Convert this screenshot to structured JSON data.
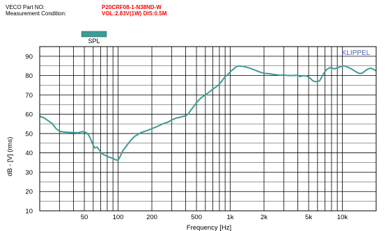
{
  "header": {
    "part_no_label": "VECO Part NO:",
    "part_no_value": "P20CRF08-1-N38ND-W",
    "measurement_label": "Measurement Condition:",
    "measurement_value": "VOL:2.83V(1W)  DIS:0.5M"
  },
  "legend": {
    "label": "SPL",
    "color": "#3b9b95"
  },
  "brand": "KLIPPEL",
  "colors": {
    "curve": "#3b9b95",
    "grid": "#000000"
  },
  "chart_data": {
    "type": "line",
    "xscale": "log",
    "xlim": [
      20,
      20000
    ],
    "ylim": [
      10,
      95
    ],
    "xlabel": "Frequency [Hz]",
    "ylabel": "dB - [V] (rms)",
    "xtick_labels": [
      {
        "value": 50,
        "label": "50"
      },
      {
        "value": 100,
        "label": "100"
      },
      {
        "value": 200,
        "label": "200"
      },
      {
        "value": 500,
        "label": "500"
      },
      {
        "value": 1000,
        "label": "1k"
      },
      {
        "value": 2000,
        "label": "2k"
      },
      {
        "value": 5000,
        "label": "5k"
      },
      {
        "value": 10000,
        "label": "10k"
      }
    ],
    "ytick_labels": [
      10,
      20,
      30,
      40,
      50,
      60,
      70,
      80,
      90
    ],
    "grid": true,
    "series": [
      {
        "name": "SPL",
        "points": [
          [
            20,
            59
          ],
          [
            22,
            58
          ],
          [
            24,
            56.5
          ],
          [
            26,
            55
          ],
          [
            28,
            52.5
          ],
          [
            30,
            51.2
          ],
          [
            33,
            50.8
          ],
          [
            36,
            50.6
          ],
          [
            40,
            50.5
          ],
          [
            44,
            50.4
          ],
          [
            48,
            51
          ],
          [
            52,
            50.5
          ],
          [
            55,
            49
          ],
          [
            57,
            47
          ],
          [
            60,
            44
          ],
          [
            62,
            42.5
          ],
          [
            65,
            43
          ],
          [
            68,
            41.5
          ],
          [
            71,
            39.8
          ],
          [
            75,
            39
          ],
          [
            80,
            38.2
          ],
          [
            85,
            37.6
          ],
          [
            90,
            37.2
          ],
          [
            95,
            36.4
          ],
          [
            100,
            36.2
          ],
          [
            105,
            38.5
          ],
          [
            110,
            41
          ],
          [
            120,
            44
          ],
          [
            130,
            46.5
          ],
          [
            140,
            48.5
          ],
          [
            150,
            49.5
          ],
          [
            160,
            50.5
          ],
          [
            180,
            51.5
          ],
          [
            200,
            52.5
          ],
          [
            220,
            53.5
          ],
          [
            250,
            55
          ],
          [
            280,
            56
          ],
          [
            300,
            57
          ],
          [
            330,
            58
          ],
          [
            360,
            58.5
          ],
          [
            400,
            59.2
          ],
          [
            420,
            60
          ],
          [
            450,
            62.5
          ],
          [
            480,
            64.5
          ],
          [
            500,
            66
          ],
          [
            550,
            68.5
          ],
          [
            600,
            70
          ],
          [
            650,
            71.5
          ],
          [
            700,
            73
          ],
          [
            750,
            74.2
          ],
          [
            800,
            75.5
          ],
          [
            850,
            77.5
          ],
          [
            900,
            79.5
          ],
          [
            950,
            80.5
          ],
          [
            1000,
            82
          ],
          [
            1050,
            83
          ],
          [
            1100,
            84
          ],
          [
            1150,
            84.8
          ],
          [
            1200,
            85
          ],
          [
            1300,
            84.8
          ],
          [
            1400,
            84.3
          ],
          [
            1500,
            83.8
          ],
          [
            1600,
            83.2
          ],
          [
            1800,
            82
          ],
          [
            2000,
            81.2
          ],
          [
            2200,
            81
          ],
          [
            2500,
            80.5
          ],
          [
            2800,
            80.2
          ],
          [
            3000,
            80.3
          ],
          [
            3200,
            80.1
          ],
          [
            3500,
            80
          ],
          [
            4000,
            80.2
          ],
          [
            4200,
            79.5
          ],
          [
            4500,
            80
          ],
          [
            4800,
            79.8
          ],
          [
            5000,
            79.2
          ],
          [
            5200,
            78.5
          ],
          [
            5400,
            77.5
          ],
          [
            5600,
            77
          ],
          [
            6000,
            76.8
          ],
          [
            6300,
            77.5
          ],
          [
            6800,
            81
          ],
          [
            7200,
            83
          ],
          [
            7600,
            84
          ],
          [
            8000,
            84
          ],
          [
            8500,
            83.5
          ],
          [
            9000,
            84
          ],
          [
            9500,
            84.5
          ],
          [
            10000,
            85
          ],
          [
            10500,
            85
          ],
          [
            11000,
            84.5
          ],
          [
            12000,
            83.5
          ],
          [
            13000,
            82.2
          ],
          [
            14000,
            81.2
          ],
          [
            15000,
            81.2
          ],
          [
            16000,
            82.5
          ],
          [
            17000,
            83.5
          ],
          [
            18000,
            83.8
          ],
          [
            19000,
            83.2
          ],
          [
            20000,
            82.5
          ]
        ]
      }
    ]
  }
}
